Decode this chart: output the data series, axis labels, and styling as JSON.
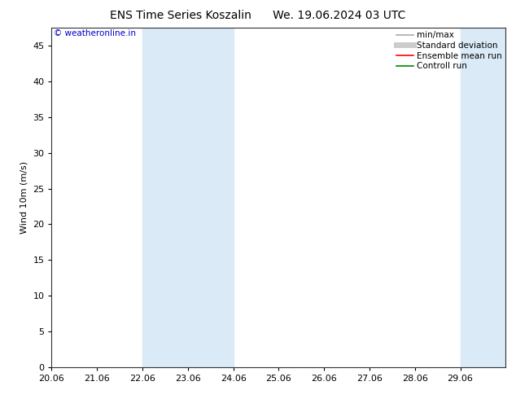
{
  "title": "ENS Time Series Koszalin      We. 19.06.2024 03 UTC",
  "ylabel": "Wind 10m (m/s)",
  "copyright": "© weatheronline.in",
  "copyright_color": "#0000cc",
  "background_color": "#ffffff",
  "plot_bg_color": "#ffffff",
  "ylim": [
    0,
    47.5
  ],
  "yticks": [
    0,
    5,
    10,
    15,
    20,
    25,
    30,
    35,
    40,
    45
  ],
  "xlim": [
    0.0,
    10.0
  ],
  "xtick_labels": [
    "20.06",
    "21.06",
    "22.06",
    "23.06",
    "24.06",
    "25.06",
    "26.06",
    "27.06",
    "28.06",
    "29.06"
  ],
  "xtick_positions": [
    0,
    1,
    2,
    3,
    4,
    5,
    6,
    7,
    8,
    9
  ],
  "shade_bands": [
    {
      "xmin": 2.0,
      "xmax": 2.5,
      "color": "#daeaf7"
    },
    {
      "xmin": 2.5,
      "xmax": 4.0,
      "color": "#daeaf7"
    },
    {
      "xmin": 9.0,
      "xmax": 10.0,
      "color": "#daeaf7"
    }
  ],
  "legend_items": [
    {
      "label": "min/max",
      "color": "#aaaaaa",
      "lw": 1.2,
      "type": "line"
    },
    {
      "label": "Standard deviation",
      "color": "#cccccc",
      "lw": 5,
      "type": "line"
    },
    {
      "label": "Ensemble mean run",
      "color": "#ff0000",
      "lw": 1.2,
      "type": "line"
    },
    {
      "label": "Controll run",
      "color": "#008800",
      "lw": 1.2,
      "type": "line"
    }
  ],
  "title_fontsize": 10,
  "axis_fontsize": 8,
  "tick_fontsize": 8,
  "legend_fontsize": 7.5,
  "copyright_fontsize": 7.5
}
